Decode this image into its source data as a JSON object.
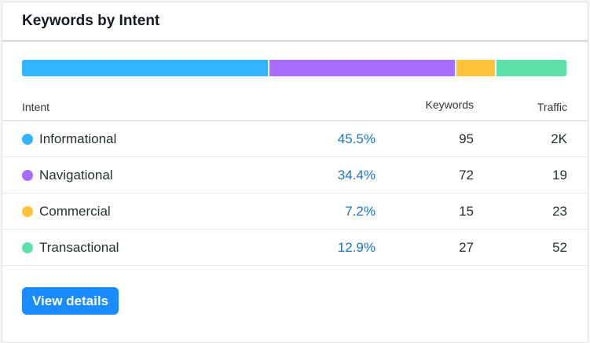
{
  "widget": {
    "title": "Keywords by Intent"
  },
  "table": {
    "headers": {
      "intent": "Intent",
      "keywords": "Keywords",
      "traffic": "Traffic"
    },
    "rows": [
      {
        "name": "Informational",
        "percent": "45.5%",
        "share": 45.5,
        "keywords": "95",
        "traffic": "2K",
        "color": "#33b4ff"
      },
      {
        "name": "Navigational",
        "percent": "34.4%",
        "share": 34.4,
        "keywords": "72",
        "traffic": "19",
        "color": "#a66efa"
      },
      {
        "name": "Commercial",
        "percent": "7.2%",
        "share": 7.2,
        "keywords": "15",
        "traffic": "23",
        "color": "#ffc43a"
      },
      {
        "name": "Transactional",
        "percent": "12.9%",
        "share": 12.9,
        "keywords": "27",
        "traffic": "52",
        "color": "#5ee0aa"
      }
    ]
  },
  "actions": {
    "view_details_label": "View details"
  }
}
